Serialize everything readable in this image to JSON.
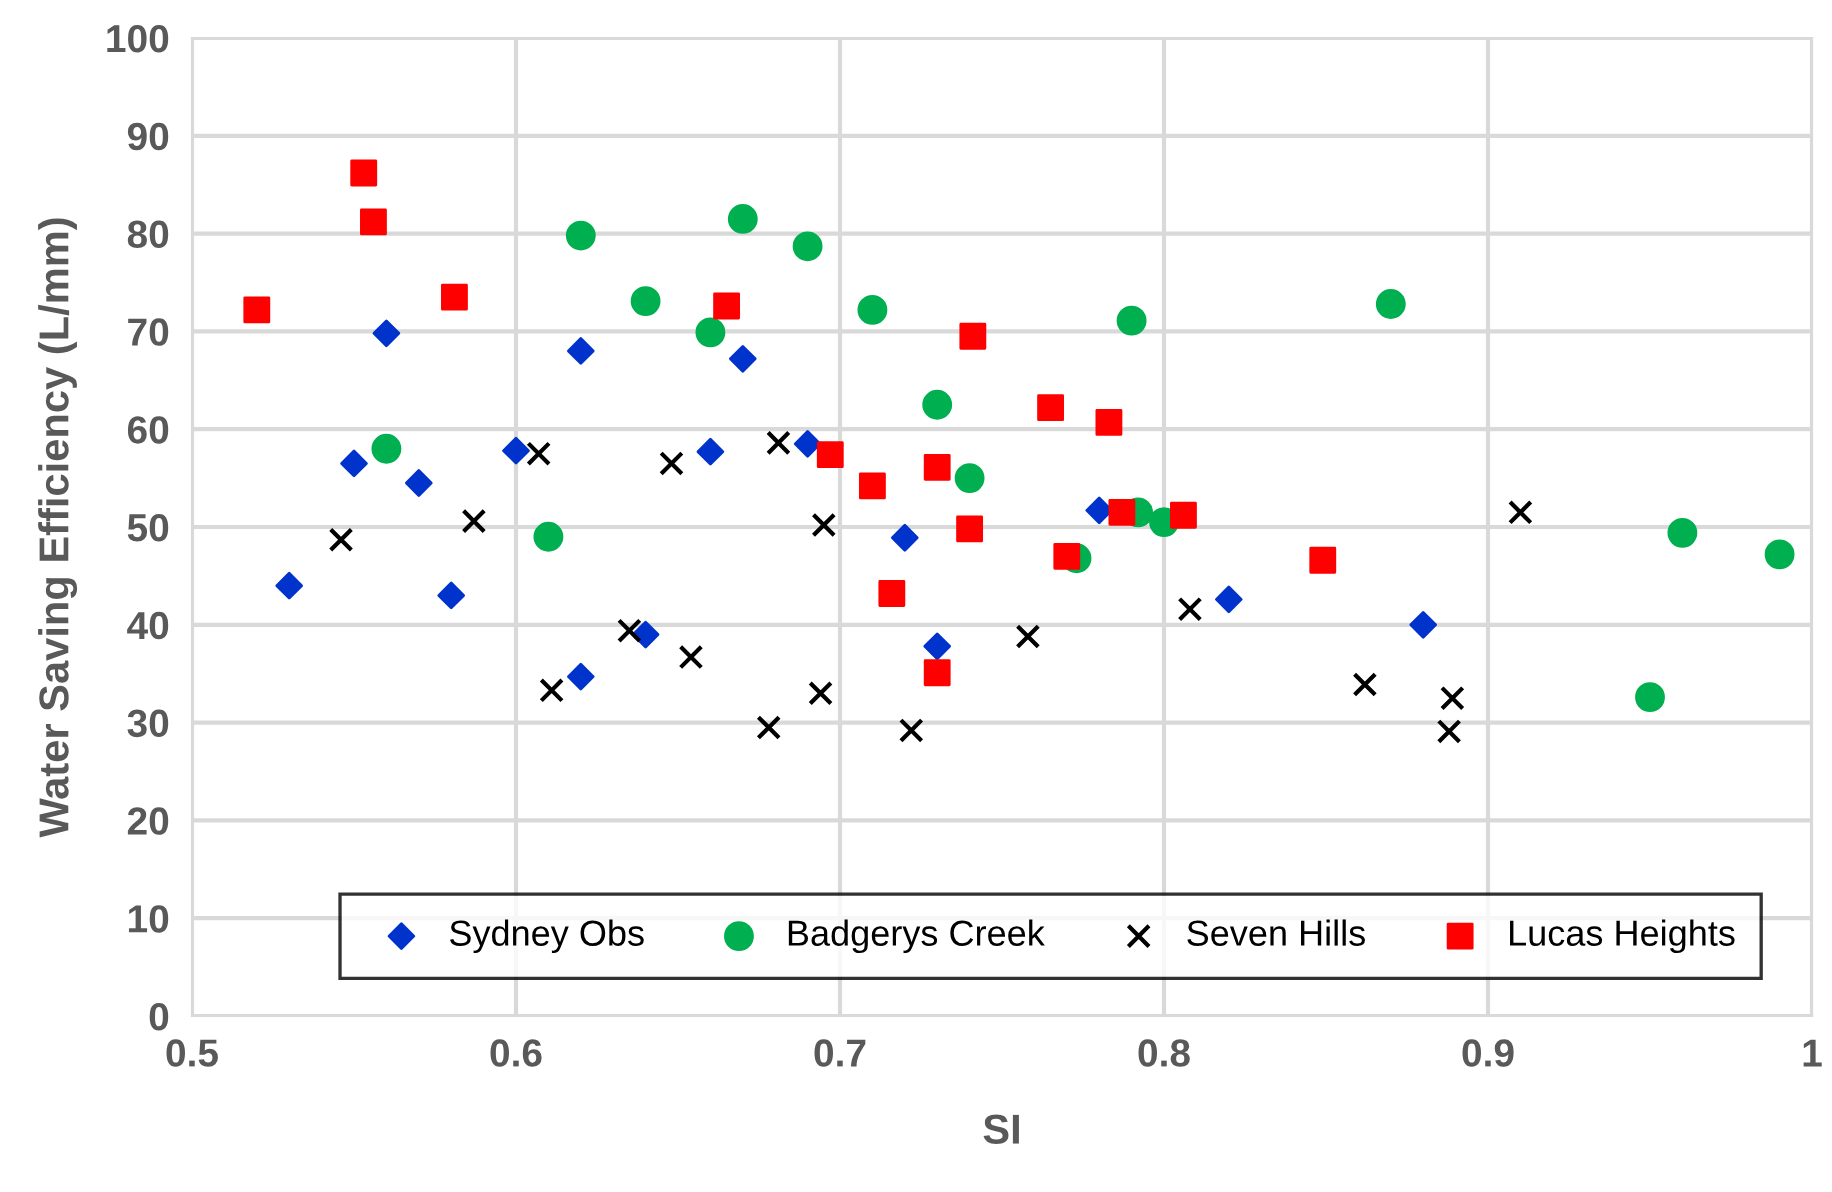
{
  "chart_data": {
    "type": "scatter",
    "xlabel": "SI",
    "ylabel": "Water Saving Efficiency (L/mm)",
    "xlim": [
      0.5,
      1
    ],
    "ylim": [
      0,
      100
    ],
    "xticks": [
      0.5,
      0.6,
      0.7,
      0.8,
      0.9,
      1
    ],
    "yticks": [
      0,
      10,
      20,
      30,
      40,
      50,
      60,
      70,
      80,
      90,
      100
    ],
    "grid": true,
    "legend": "bottom",
    "series": [
      {
        "name": "Sydney Obs",
        "color": "#0033cc",
        "marker": "diamond",
        "x": [
          0.53,
          0.55,
          0.56,
          0.57,
          0.58,
          0.6,
          0.62,
          0.62,
          0.64,
          0.66,
          0.67,
          0.69,
          0.72,
          0.73,
          0.78,
          0.82,
          0.88
        ],
        "values": [
          44,
          56.5,
          69.8,
          54.5,
          43,
          57.8,
          68,
          34.7,
          39,
          57.7,
          67.2,
          58.5,
          48.9,
          37.8,
          51.7,
          42.6,
          40
        ]
      },
      {
        "name": "Badgerys Creek",
        "color": "#00b050",
        "marker": "circle",
        "x": [
          0.56,
          0.61,
          0.62,
          0.64,
          0.66,
          0.67,
          0.69,
          0.71,
          0.73,
          0.74,
          0.773,
          0.792,
          0.79,
          0.8,
          0.87,
          0.95,
          0.96,
          0.99
        ],
        "values": [
          58,
          49,
          79.8,
          73.1,
          69.9,
          81.5,
          78.7,
          72.2,
          62.5,
          55,
          46.8,
          51.5,
          71.1,
          50.5,
          72.8,
          32.6,
          49.4,
          47.2
        ]
      },
      {
        "name": "Seven Hills",
        "color": "#000000",
        "marker": "cross",
        "x": [
          0.546,
          0.587,
          0.607,
          0.611,
          0.635,
          0.648,
          0.654,
          0.678,
          0.681,
          0.694,
          0.695,
          0.722,
          0.758,
          0.808,
          0.862,
          0.888,
          0.889,
          0.91
        ],
        "values": [
          48.7,
          50.6,
          57.5,
          33.3,
          39.4,
          56.5,
          36.7,
          29.5,
          58.6,
          33,
          50.2,
          29.2,
          38.8,
          41.6,
          33.9,
          29.1,
          32.5,
          51.5
        ]
      },
      {
        "name": "Lucas Heights",
        "color": "#ff0000",
        "marker": "square",
        "x": [
          0.52,
          0.553,
          0.556,
          0.581,
          0.665,
          0.697,
          0.71,
          0.716,
          0.73,
          0.73,
          0.74,
          0.741,
          0.765,
          0.77,
          0.783,
          0.787,
          0.806,
          0.849
        ],
        "values": [
          72.2,
          86.2,
          81.2,
          73.5,
          72.6,
          57.4,
          54.2,
          43.2,
          56.1,
          35.1,
          49.8,
          69.5,
          62.2,
          47,
          60.7,
          51.5,
          51.2,
          46.6
        ]
      }
    ]
  }
}
